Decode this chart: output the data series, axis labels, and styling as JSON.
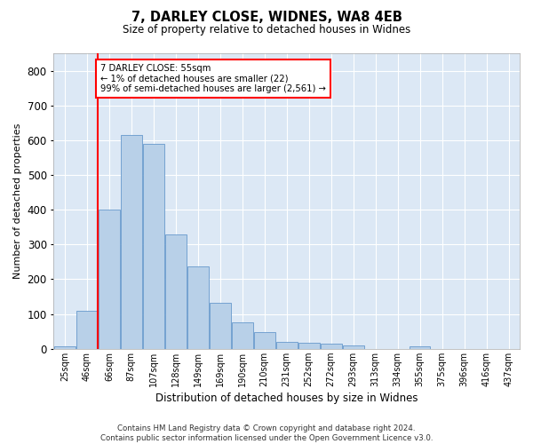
{
  "title1": "7, DARLEY CLOSE, WIDNES, WA8 4EB",
  "title2": "Size of property relative to detached houses in Widnes",
  "xlabel": "Distribution of detached houses by size in Widnes",
  "ylabel": "Number of detached properties",
  "categories": [
    "25sqm",
    "46sqm",
    "66sqm",
    "87sqm",
    "107sqm",
    "128sqm",
    "149sqm",
    "169sqm",
    "190sqm",
    "210sqm",
    "231sqm",
    "252sqm",
    "272sqm",
    "293sqm",
    "313sqm",
    "334sqm",
    "355sqm",
    "375sqm",
    "396sqm",
    "416sqm",
    "437sqm"
  ],
  "values": [
    8,
    108,
    400,
    615,
    590,
    330,
    238,
    133,
    77,
    48,
    20,
    17,
    16,
    9,
    0,
    0,
    8,
    0,
    0,
    0,
    0
  ],
  "bar_color": "#b8d0e8",
  "bar_edge_color": "#6699cc",
  "vline_color": "red",
  "vline_x": 1.5,
  "annotation_text": "7 DARLEY CLOSE: 55sqm\n← 1% of detached houses are smaller (22)\n99% of semi-detached houses are larger (2,561) →",
  "annotation_box_color": "white",
  "annotation_box_edge": "red",
  "ylim": [
    0,
    850
  ],
  "yticks": [
    0,
    100,
    200,
    300,
    400,
    500,
    600,
    700,
    800
  ],
  "background_color": "#dce8f5",
  "grid_color": "white",
  "footer": "Contains HM Land Registry data © Crown copyright and database right 2024.\nContains public sector information licensed under the Open Government Licence v3.0."
}
